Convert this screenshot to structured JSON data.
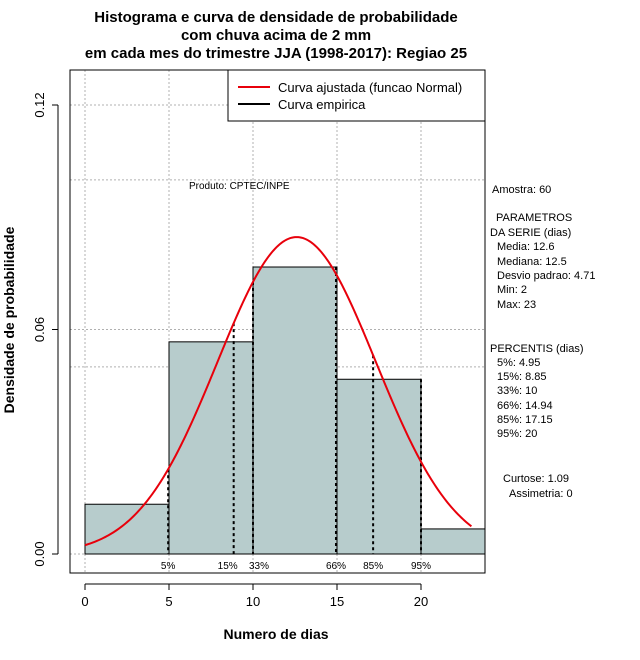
{
  "chart_data": {
    "type": "histogram",
    "title_lines": [
      "Histograma e curva de densidade de probabilidade",
      "com chuva acima de 2 mm",
      "em cada mes do trimestre JJA (1998-2017): Regiao 25"
    ],
    "xlabel": "Numero de dias",
    "ylabel": "Densidade de probabilidade",
    "xlim": [
      -1,
      24
    ],
    "ylim": [
      -0.004,
      0.13
    ],
    "x_ticks": [
      0,
      5,
      10,
      15,
      20
    ],
    "y_ticks": [
      0.0,
      0.06,
      0.12
    ],
    "y_tick_labels": [
      "0.00",
      "0.06",
      "0.12"
    ],
    "grid_y": [
      0.0,
      0.05,
      0.06,
      0.1,
      0.12
    ],
    "grid_x": [
      0,
      5,
      10,
      15,
      20
    ],
    "bins": [
      {
        "from": 0,
        "to": 5,
        "density": 0.0133
      },
      {
        "from": 5,
        "to": 10,
        "density": 0.0567
      },
      {
        "from": 10,
        "to": 15,
        "density": 0.0767
      },
      {
        "from": 15,
        "to": 20,
        "density": 0.0467
      },
      {
        "from": 20,
        "to": 24,
        "density": 0.0067
      }
    ],
    "normal_fit": {
      "mean": 12.6,
      "sd": 4.71,
      "x_from": 0,
      "x_to": 23
    },
    "percentiles": [
      {
        "label": "5%",
        "value": 4.95,
        "show_label": true
      },
      {
        "label": "15%",
        "value": 8.85,
        "show_label": true
      },
      {
        "label": "33%",
        "value": 10,
        "show_label": true
      },
      {
        "label": "66%",
        "value": 14.94,
        "show_label": true
      },
      {
        "label": "85%",
        "value": 17.15,
        "show_label": true
      },
      {
        "label": "95%",
        "value": 20,
        "show_label": true
      }
    ],
    "legend": [
      {
        "label": "Curva ajustada (funcao Normal)",
        "color": "#e8000b"
      },
      {
        "label": "Curva empirica",
        "color": "#000000"
      }
    ],
    "annotation": "Produto: CPTEC/INPE"
  },
  "stats_panel": {
    "amostra": "Amostra: 60",
    "parametros_title_1": "PARAMETROS",
    "parametros_title_2": "DA SERIE (dias)",
    "media": "Media: 12.6",
    "mediana": "Mediana: 12.5",
    "desvio": "Desvio padrao: 4.71",
    "min": "Min: 2",
    "max": "Max: 23",
    "percentis_title": "PERCENTIS (dias)",
    "p5": "5%: 4.95",
    "p15": "15%: 8.85",
    "p33": "33%: 10",
    "p66": "66%: 14.94",
    "p85": "85%: 17.15",
    "p95": "95%: 20",
    "curtose": "Curtose: 1.09",
    "assimetria": "Assimetria: 0"
  },
  "colors": {
    "bar_fill": "#b7cccc",
    "curve": "#e8000b",
    "grid": "#b0b0b0"
  }
}
